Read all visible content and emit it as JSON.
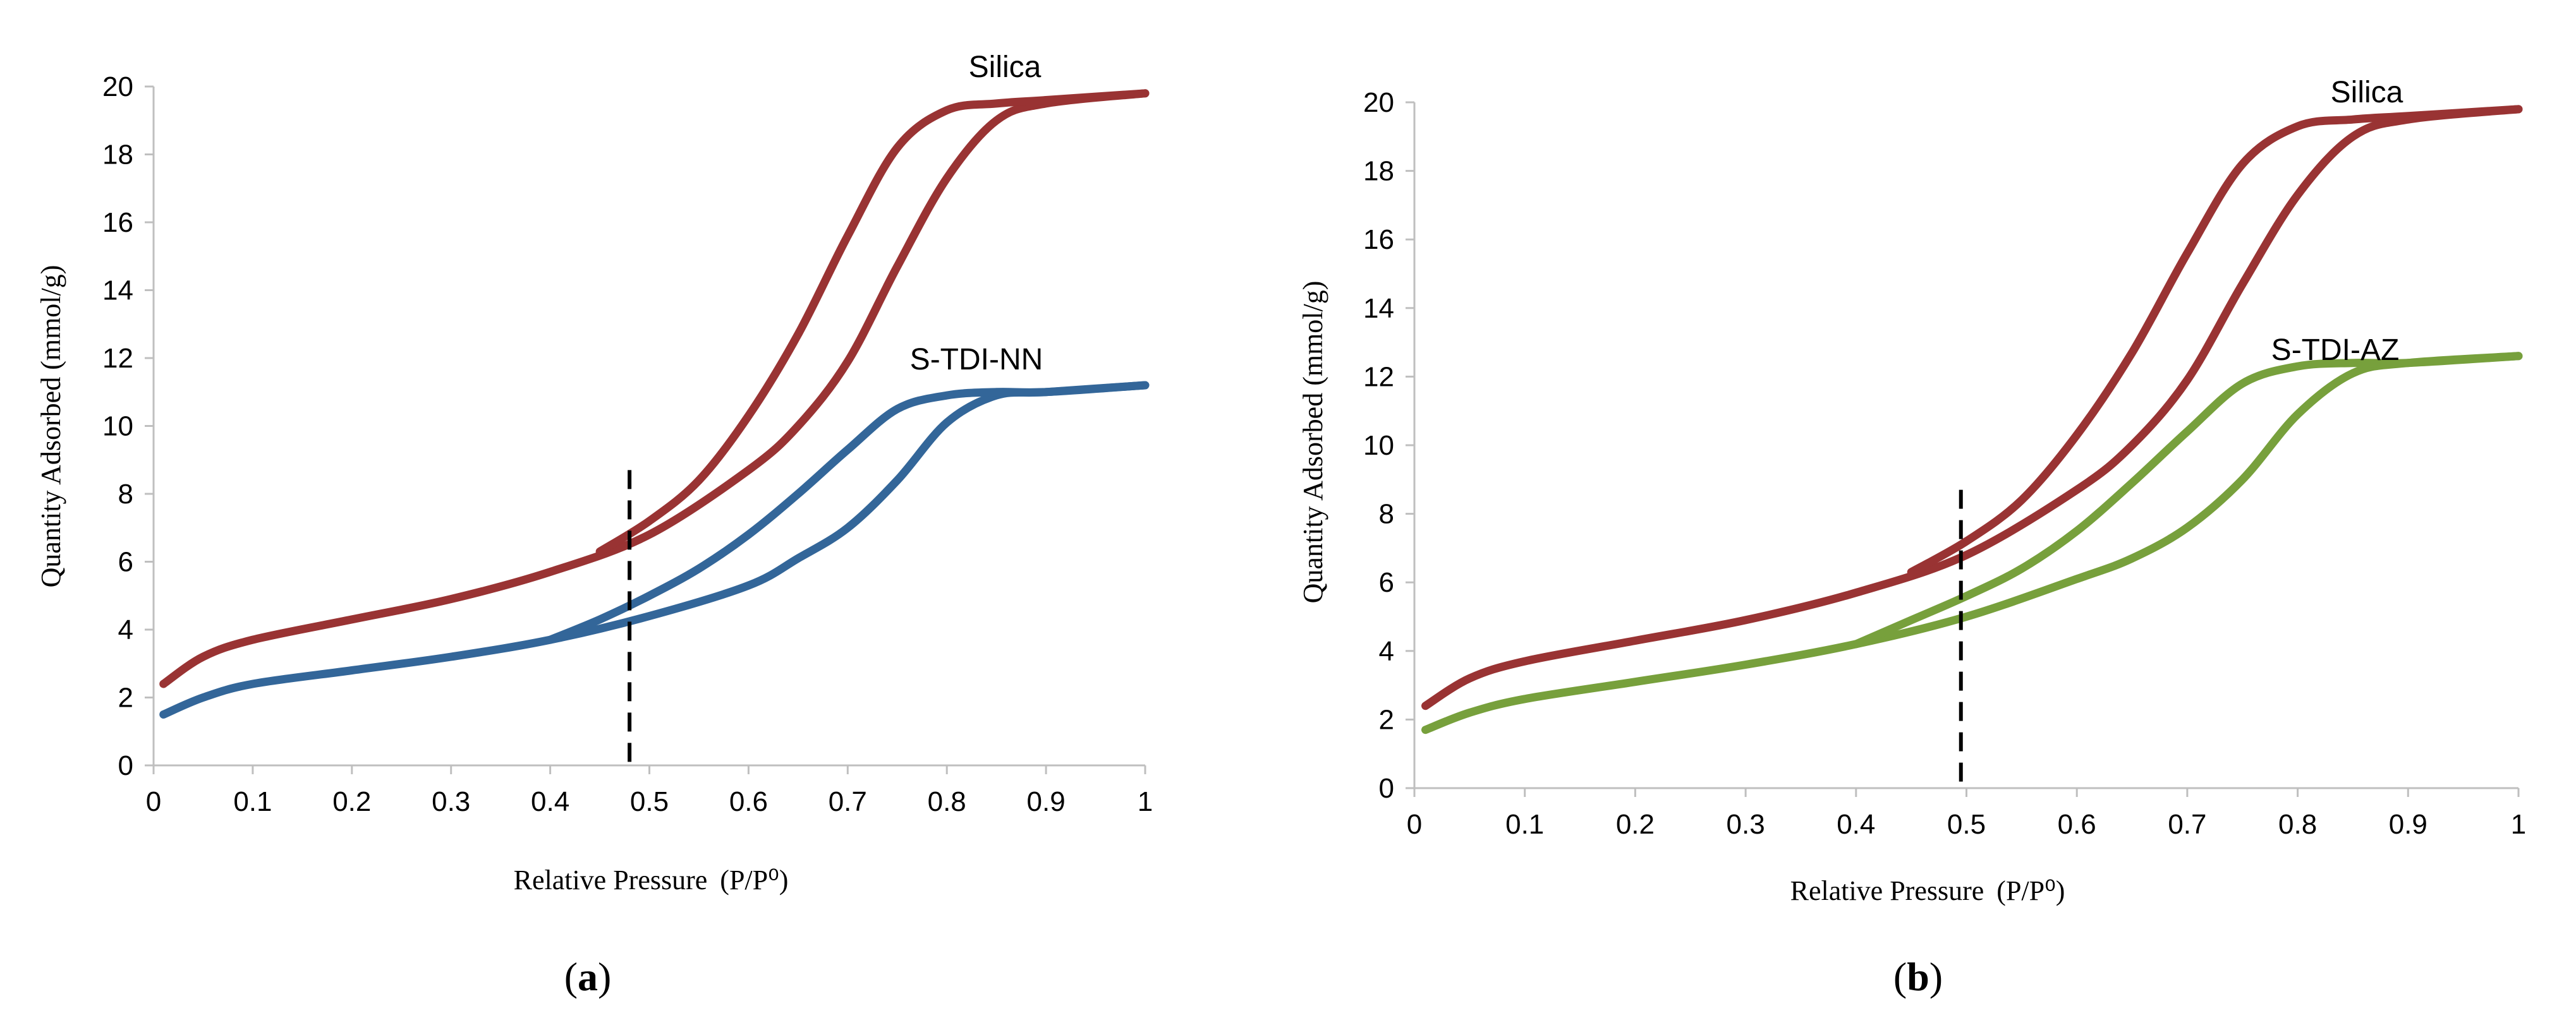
{
  "chart_data": [
    {
      "type": "line",
      "panel_label": "a",
      "xlabel": "Relative Pressure",
      "xlabel_unit": "(P/P⁰)",
      "ylabel": "Quantity Adsorbed (mmol/g)",
      "xlim": [
        0,
        1
      ],
      "ylim": [
        0,
        20
      ],
      "xticks": [
        "0",
        "0.1",
        "0.2",
        "0.3",
        "0.4",
        "0.5",
        "0.6",
        "0.7",
        "0.8",
        "0.9",
        "1"
      ],
      "yticks": [
        "0",
        "2",
        "4",
        "6",
        "8",
        "10",
        "12",
        "14",
        "16",
        "18",
        "20"
      ],
      "grid": false,
      "legend": "none",
      "marker_line": {
        "x": 0.48,
        "y_top": 8.7,
        "style": "dashed",
        "color": "#000000"
      },
      "series": [
        {
          "name": "Silica",
          "color": "#993333",
          "adsorption": [
            [
              0.01,
              2.4
            ],
            [
              0.05,
              3.2
            ],
            [
              0.1,
              3.7
            ],
            [
              0.2,
              4.3
            ],
            [
              0.3,
              4.9
            ],
            [
              0.4,
              5.7
            ],
            [
              0.5,
              6.8
            ],
            [
              0.6,
              8.7
            ],
            [
              0.65,
              10.0
            ],
            [
              0.7,
              11.9
            ],
            [
              0.75,
              14.7
            ],
            [
              0.8,
              17.3
            ],
            [
              0.85,
              19.0
            ],
            [
              0.9,
              19.5
            ],
            [
              1.0,
              19.8
            ]
          ],
          "desorption": [
            [
              0.45,
              6.3
            ],
            [
              0.5,
              7.2
            ],
            [
              0.55,
              8.4
            ],
            [
              0.6,
              10.3
            ],
            [
              0.65,
              12.7
            ],
            [
              0.7,
              15.6
            ],
            [
              0.75,
              18.2
            ],
            [
              0.8,
              19.3
            ],
            [
              0.85,
              19.5
            ],
            [
              0.9,
              19.6
            ],
            [
              1.0,
              19.8
            ]
          ]
        },
        {
          "name": "S-TDI-NN",
          "color": "#336699",
          "adsorption": [
            [
              0.01,
              1.5
            ],
            [
              0.05,
              2.0
            ],
            [
              0.1,
              2.4
            ],
            [
              0.2,
              2.8
            ],
            [
              0.3,
              3.2
            ],
            [
              0.4,
              3.7
            ],
            [
              0.5,
              4.4
            ],
            [
              0.6,
              5.3
            ],
            [
              0.65,
              6.1
            ],
            [
              0.7,
              7.0
            ],
            [
              0.75,
              8.4
            ],
            [
              0.8,
              10.1
            ],
            [
              0.85,
              10.9
            ],
            [
              0.9,
              11.0
            ],
            [
              1.0,
              11.2
            ]
          ],
          "desorption": [
            [
              0.4,
              3.7
            ],
            [
              0.45,
              4.3
            ],
            [
              0.5,
              5.0
            ],
            [
              0.55,
              5.8
            ],
            [
              0.6,
              6.8
            ],
            [
              0.65,
              8.0
            ],
            [
              0.7,
              9.3
            ],
            [
              0.75,
              10.5
            ],
            [
              0.8,
              10.9
            ],
            [
              0.85,
              11.0
            ],
            [
              0.9,
              11.0
            ],
            [
              1.0,
              11.2
            ]
          ]
        }
      ]
    },
    {
      "type": "line",
      "panel_label": "b",
      "xlabel": "Relative Pressure",
      "xlabel_unit": "(P/P⁰)",
      "ylabel": "Quantity Adsorbed (mmol/g)",
      "xlim": [
        0,
        1
      ],
      "ylim": [
        0,
        20
      ],
      "xticks": [
        "0",
        "0.1",
        "0.2",
        "0.3",
        "0.4",
        "0.5",
        "0.6",
        "0.7",
        "0.8",
        "0.9",
        "1"
      ],
      "yticks": [
        "0",
        "2",
        "4",
        "6",
        "8",
        "10",
        "12",
        "14",
        "16",
        "18",
        "20"
      ],
      "grid": false,
      "legend": "none",
      "marker_line": {
        "x": 0.495,
        "y_top": 8.7,
        "style": "dashed",
        "color": "#000000"
      },
      "series": [
        {
          "name": "Silica",
          "color": "#993333",
          "adsorption": [
            [
              0.01,
              2.4
            ],
            [
              0.05,
              3.2
            ],
            [
              0.1,
              3.7
            ],
            [
              0.2,
              4.3
            ],
            [
              0.3,
              4.9
            ],
            [
              0.4,
              5.7
            ],
            [
              0.5,
              6.8
            ],
            [
              0.6,
              8.7
            ],
            [
              0.65,
              10.0
            ],
            [
              0.7,
              11.9
            ],
            [
              0.75,
              14.7
            ],
            [
              0.8,
              17.3
            ],
            [
              0.85,
              19.0
            ],
            [
              0.9,
              19.5
            ],
            [
              1.0,
              19.8
            ]
          ],
          "desorption": [
            [
              0.45,
              6.3
            ],
            [
              0.5,
              7.2
            ],
            [
              0.55,
              8.4
            ],
            [
              0.6,
              10.3
            ],
            [
              0.65,
              12.7
            ],
            [
              0.7,
              15.6
            ],
            [
              0.75,
              18.2
            ],
            [
              0.8,
              19.3
            ],
            [
              0.85,
              19.5
            ],
            [
              0.9,
              19.6
            ],
            [
              1.0,
              19.8
            ]
          ]
        },
        {
          "name": "S-TDI-AZ",
          "color": "#77a03c",
          "adsorption": [
            [
              0.01,
              1.7
            ],
            [
              0.05,
              2.2
            ],
            [
              0.1,
              2.6
            ],
            [
              0.2,
              3.1
            ],
            [
              0.3,
              3.6
            ],
            [
              0.4,
              4.2
            ],
            [
              0.5,
              5.0
            ],
            [
              0.6,
              6.1
            ],
            [
              0.65,
              6.7
            ],
            [
              0.7,
              7.6
            ],
            [
              0.75,
              9.0
            ],
            [
              0.8,
              10.9
            ],
            [
              0.85,
              12.1
            ],
            [
              0.9,
              12.4
            ],
            [
              1.0,
              12.6
            ]
          ],
          "desorption": [
            [
              0.4,
              4.2
            ],
            [
              0.45,
              4.9
            ],
            [
              0.5,
              5.6
            ],
            [
              0.55,
              6.4
            ],
            [
              0.6,
              7.5
            ],
            [
              0.65,
              8.9
            ],
            [
              0.7,
              10.4
            ],
            [
              0.75,
              11.8
            ],
            [
              0.8,
              12.3
            ],
            [
              0.85,
              12.4
            ],
            [
              0.9,
              12.4
            ],
            [
              1.0,
              12.6
            ]
          ]
        }
      ]
    }
  ]
}
